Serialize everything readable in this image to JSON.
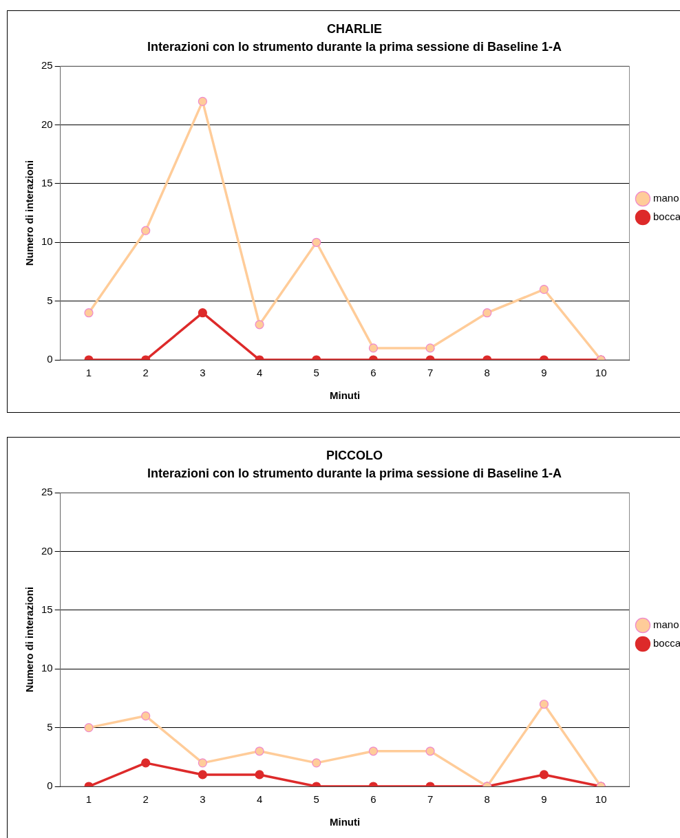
{
  "chart_data": [
    {
      "type": "line",
      "title": "CHARLIE",
      "subtitle": "Interazioni con lo strumento durante la prima sessione di Baseline 1-A",
      "xlabel": "Minuti",
      "ylabel": "Numero di interazioni",
      "categories": [
        "1",
        "2",
        "3",
        "4",
        "5",
        "6",
        "7",
        "8",
        "9",
        "10"
      ],
      "series": [
        {
          "name": "mano",
          "color": "#ffcc99",
          "values": [
            4,
            11,
            22,
            3,
            10,
            1,
            1,
            4,
            6,
            0
          ]
        },
        {
          "name": "bocca",
          "color": "#dd2a2a",
          "values": [
            0,
            0,
            4,
            0,
            0,
            0,
            0,
            0,
            0,
            0
          ]
        }
      ],
      "ylim": [
        0,
        25
      ],
      "yticks": [
        0,
        5,
        10,
        15,
        20,
        25
      ],
      "grid": "y",
      "legend": "right",
      "marker": "circle",
      "line_style": "solid"
    },
    {
      "type": "line",
      "title": "PICCOLO",
      "subtitle": "Interazioni con lo strumento durante la prima sessione di Baseline 1-A",
      "xlabel": "Minuti",
      "ylabel": "Numero di interazioni",
      "categories": [
        "1",
        "2",
        "3",
        "4",
        "5",
        "6",
        "7",
        "8",
        "9",
        "10"
      ],
      "series": [
        {
          "name": "mano",
          "color": "#ffcc99",
          "values": [
            5,
            6,
            2,
            3,
            2,
            3,
            3,
            0,
            7,
            0
          ]
        },
        {
          "name": "bocca",
          "color": "#dd2a2a",
          "values": [
            0,
            2,
            1,
            1,
            0,
            0,
            0,
            0,
            1,
            0
          ]
        }
      ],
      "ylim": [
        0,
        25
      ],
      "yticks": [
        0,
        5,
        10,
        15,
        20,
        25
      ],
      "grid": "y",
      "legend": "right",
      "marker": "circle",
      "line_style": "solid"
    }
  ]
}
